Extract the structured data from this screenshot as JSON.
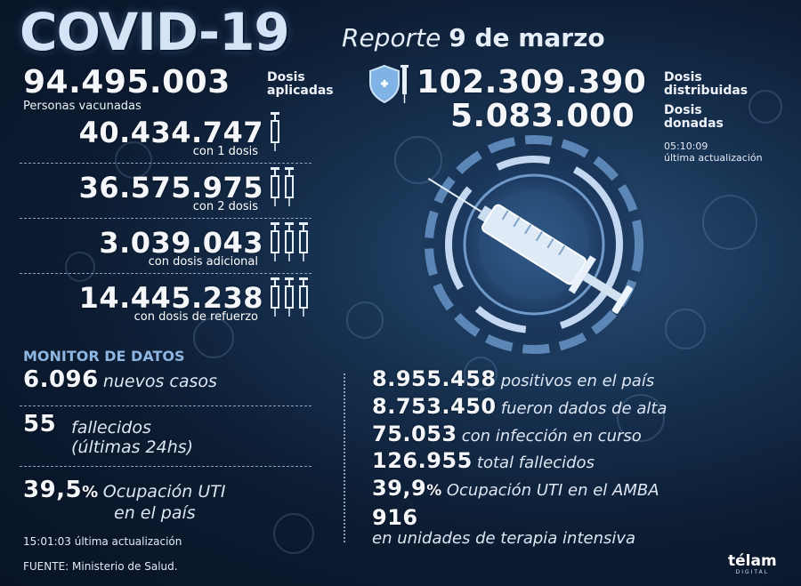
{
  "header": {
    "title": "COVID-19",
    "report_prefix": "Reporte",
    "report_date": "9 de marzo"
  },
  "dosis": {
    "aplicadas_value": "94.495.003",
    "aplicadas_line1": "Dosis",
    "aplicadas_line2": "aplicadas",
    "distribuidas_value": "102.309.390",
    "distribuidas_line1": "Dosis",
    "distribuidas_line2": "distribuidas",
    "donadas_value": "5.083.000",
    "donadas_line1": "Dosis",
    "donadas_line2": "donadas",
    "update_time": "05:10:09",
    "update_label": "última actualización"
  },
  "vacunados": {
    "heading": "Personas vacunadas",
    "rows": [
      {
        "value": "40.434.747",
        "label": "con 1 dosis",
        "syringes": 1
      },
      {
        "value": "36.575.975",
        "label": "con 2 dosis",
        "syringes": 2
      },
      {
        "value": "3.039.043",
        "label": "con dosis adicional",
        "syringes": 3
      },
      {
        "value": "14.445.238",
        "label": "con dosis de refuerzo",
        "syringes": 3
      }
    ]
  },
  "monitor": {
    "heading": "MONITOR DE DATOS",
    "casos_value": "6.096",
    "casos_label": "nuevos casos",
    "fallecidos_value": "55",
    "fallecidos_label1": "fallecidos",
    "fallecidos_label2": "(últimas 24hs)",
    "uti_value": "39,5",
    "uti_pct": "%",
    "uti_label1": "Ocupación UTI",
    "uti_label2": "en el país",
    "update": "15:01:03 última actualización"
  },
  "totales": {
    "positivos_value": "8.955.458",
    "positivos_label": "positivos en el país",
    "alta_value": "8.753.450",
    "alta_label": "fueron dados de alta",
    "curso_value": "75.053",
    "curso_label": "con infección en curso",
    "fallecidos_value": "126.955",
    "fallecidos_label": "total fallecidos",
    "amba_value": "39,9",
    "amba_pct": "%",
    "amba_label": "Ocupación UTI en el AMBA",
    "terapia_value": "916",
    "terapia_label": "en unidades de terapia intensiva"
  },
  "footer": {
    "source": "FUENTE: Ministerio de Salud.",
    "brand": "télam",
    "brand_sub": "DIGITAL"
  },
  "colors": {
    "accent": "#8fb6e0",
    "background": "#0c1b31"
  }
}
